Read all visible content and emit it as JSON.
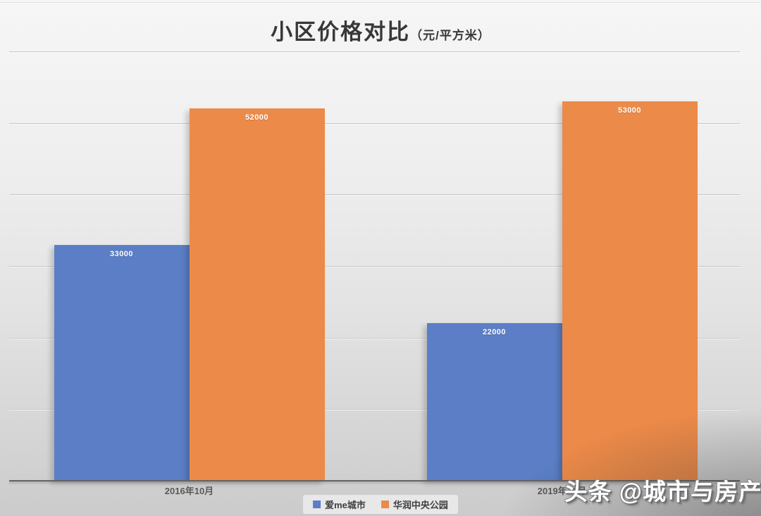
{
  "chart": {
    "title": "小区价格对比",
    "title_unit": "（元/平方米）",
    "watermark": "头条 @城市与房产"
  },
  "chart_data": {
    "type": "bar",
    "title": "小区价格对比（元/平方米）",
    "categories": [
      "2016年10月",
      "2019年10月"
    ],
    "series": [
      {
        "name": "爱me城市",
        "color": "#5B7EC6",
        "values": [
          33000,
          22000
        ]
      },
      {
        "name": "华润中央公园",
        "color": "#EC8A49",
        "values": [
          52000,
          53000
        ]
      }
    ],
    "ylim": [
      0,
      60000
    ],
    "gridline_step": 10000,
    "grid": true,
    "y_axis_labels_visible": false,
    "legend_position": "bottom",
    "data_labels": true
  }
}
